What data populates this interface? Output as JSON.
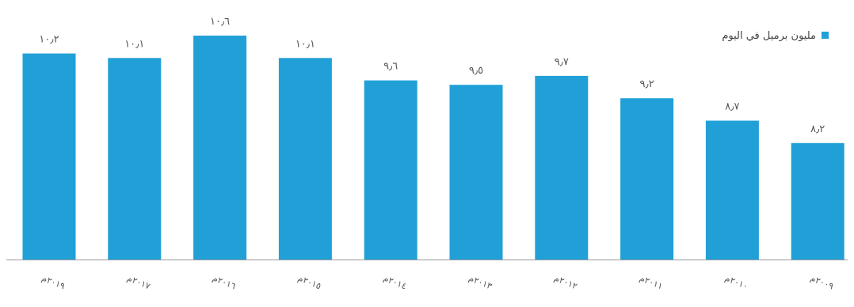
{
  "chart_data": {
    "type": "bar",
    "categories": [
      "٢٠١٩م",
      "٢٠١٧م",
      "٢٠١٦م",
      "٢٠١٥م",
      "٢٠١٤م",
      "٢٠١٣م",
      "٢٠١٢م",
      "٢٠١١م",
      "٢٠١٠م",
      "٢٠٠٩م"
    ],
    "values": [
      10.2,
      10.1,
      10.6,
      10.1,
      9.6,
      9.5,
      9.7,
      9.2,
      8.7,
      8.2
    ],
    "value_labels": [
      "١٠٫٢",
      "١٠٫١",
      "١٠٫٦",
      "١٠٫١",
      "٩٫٦",
      "٩٫٥",
      "٩٫٧",
      "٩٫٢",
      "٨٫٧",
      "٨٫٢"
    ],
    "series": [
      {
        "name": "مليون برميل في اليوم",
        "values": [
          10.2,
          10.1,
          10.6,
          10.1,
          9.6,
          9.5,
          9.7,
          9.2,
          8.7,
          8.2
        ]
      }
    ],
    "legend": {
      "position": "top-right"
    },
    "ylim": [
      5.6,
      10.9
    ],
    "grid": false,
    "colors": {
      "bar": "#21a0d8",
      "axis": "#999999"
    }
  }
}
